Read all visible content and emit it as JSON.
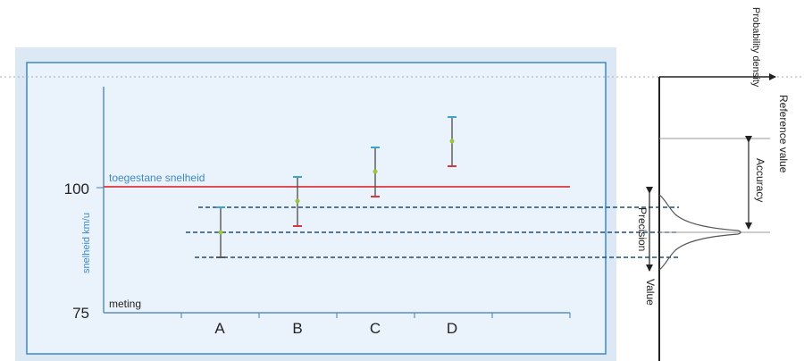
{
  "left_panel": {
    "y_axis_label": "snelheid km/u",
    "y_ticks": [
      "100",
      "75"
    ],
    "limit_line_label": "toegestane snelheid",
    "baseline_label": "meting",
    "categories": [
      "A",
      "B",
      "C",
      "D"
    ],
    "colors": {
      "panel_outer": "#dce9f5",
      "panel_inner": "#eaf3fb",
      "panel_border": "#3d88c6",
      "axis": "#5b8fbf",
      "limit_line": "#d9363e",
      "error_bar": "#555555",
      "cap_top": "#3ba3d0",
      "cap_bottom": "#d9363e",
      "point": "#9bc53d",
      "dashed": "#1f4e79"
    }
  },
  "right_panel": {
    "y_axis_label": "Probability density",
    "reference_label": "Reference value",
    "accuracy_label": "Accuracy",
    "precision_label": "Precision",
    "value_label": "Value"
  }
}
